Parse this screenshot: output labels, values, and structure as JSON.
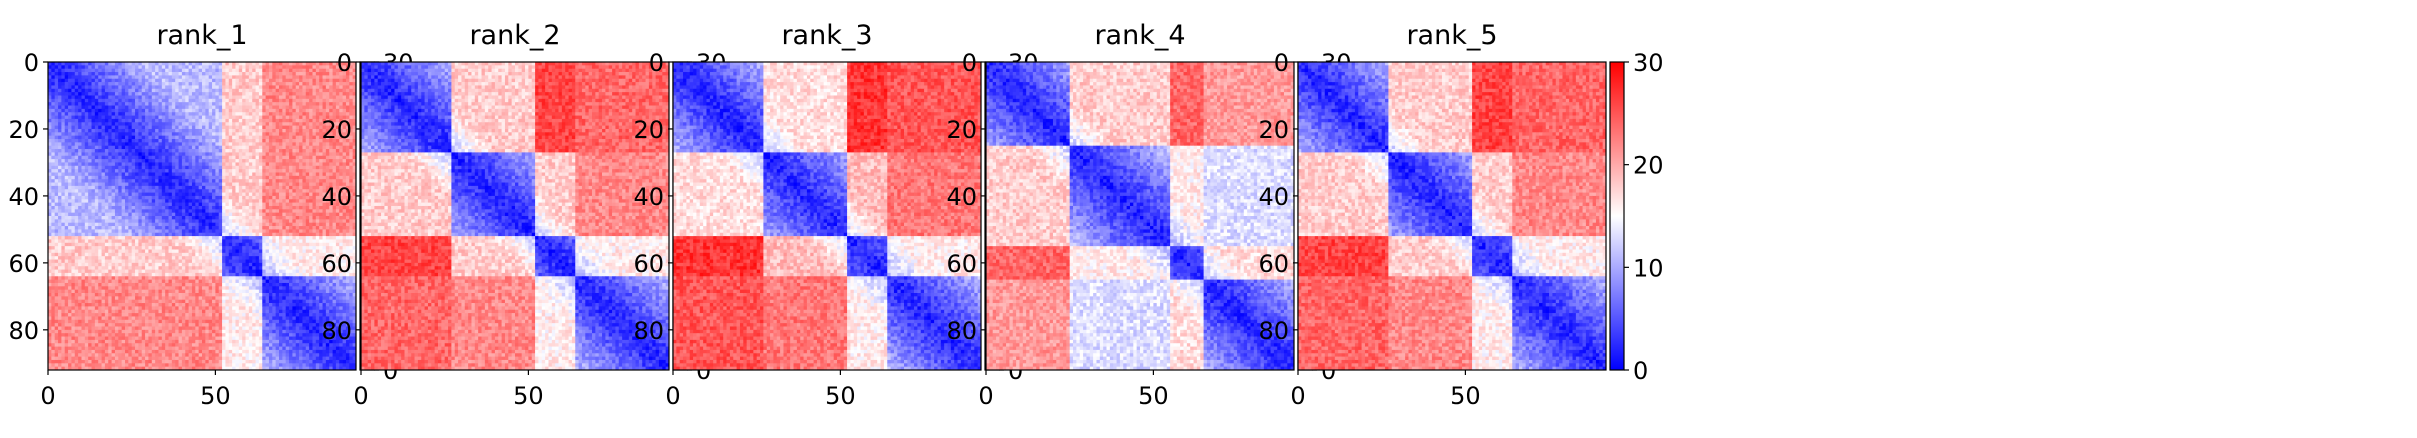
{
  "chart_data": [
    {
      "type": "heatmap",
      "title": "rank_1",
      "x_ticks": [
        0,
        50
      ],
      "y_ticks": [
        0,
        20,
        40,
        60,
        80
      ],
      "xlim": [
        0,
        92
      ],
      "ylim": [
        92,
        0
      ],
      "colorbar": {
        "min": 0,
        "max": 30,
        "ticks": [
          0,
          10,
          20,
          30
        ],
        "colors": [
          "#0000ff",
          "#ffffff",
          "#ff0000"
        ]
      },
      "domains": [
        [
          0,
          52
        ],
        [
          52,
          64
        ],
        [
          64,
          92
        ]
      ],
      "domain_contacts": [
        [
          0,
          18,
          22
        ],
        [
          18,
          0,
          16
        ],
        [
          22,
          16,
          0
        ]
      ]
    },
    {
      "type": "heatmap",
      "title": "rank_2",
      "x_ticks": [
        0,
        50
      ],
      "y_ticks": [
        0,
        20,
        40,
        60,
        80
      ],
      "xlim": [
        0,
        92
      ],
      "ylim": [
        92,
        0
      ],
      "colorbar": {
        "min": 0,
        "max": 30,
        "ticks": [
          0,
          10,
          20,
          30
        ],
        "colors": [
          "#0000ff",
          "#ffffff",
          "#ff0000"
        ]
      },
      "domains": [
        [
          0,
          27
        ],
        [
          27,
          52
        ],
        [
          52,
          64
        ],
        [
          64,
          92
        ]
      ],
      "domain_contacts": [
        [
          0,
          18,
          26,
          24
        ],
        [
          18,
          0,
          18,
          22
        ],
        [
          26,
          18,
          0,
          16
        ],
        [
          24,
          22,
          16,
          0
        ]
      ]
    },
    {
      "type": "heatmap",
      "title": "rank_3",
      "x_ticks": [
        0,
        50
      ],
      "y_ticks": [
        0,
        20,
        40,
        60,
        80
      ],
      "xlim": [
        0,
        92
      ],
      "ylim": [
        92,
        0
      ],
      "colorbar": {
        "min": 0,
        "max": 30,
        "ticks": [
          0,
          10,
          20,
          30
        ],
        "colors": [
          "#0000ff",
          "#ffffff",
          "#ff0000"
        ]
      },
      "domains": [
        [
          0,
          27
        ],
        [
          27,
          52
        ],
        [
          52,
          64
        ],
        [
          64,
          92
        ]
      ],
      "domain_contacts": [
        [
          0,
          17,
          27,
          25
        ],
        [
          17,
          0,
          19,
          23
        ],
        [
          27,
          19,
          0,
          16
        ],
        [
          25,
          23,
          16,
          0
        ]
      ]
    },
    {
      "type": "heatmap",
      "title": "rank_4",
      "x_ticks": [
        0,
        50
      ],
      "y_ticks": [
        0,
        20,
        40,
        60,
        80
      ],
      "xlim": [
        0,
        92
      ],
      "ylim": [
        92,
        0
      ],
      "colorbar": {
        "min": 0,
        "max": 30,
        "ticks": [
          0,
          10,
          20,
          30
        ],
        "colors": [
          "#0000ff",
          "#ffffff",
          "#ff0000"
        ]
      },
      "domains": [
        [
          0,
          25
        ],
        [
          25,
          55
        ],
        [
          55,
          65
        ],
        [
          65,
          92
        ]
      ],
      "domain_contacts": [
        [
          0,
          18,
          24,
          21
        ],
        [
          18,
          0,
          16,
          13
        ],
        [
          24,
          16,
          0,
          17
        ],
        [
          21,
          13,
          17,
          0
        ]
      ]
    },
    {
      "type": "heatmap",
      "title": "rank_5",
      "x_ticks": [
        0,
        50
      ],
      "y_ticks": [
        0,
        20,
        40,
        60,
        80
      ],
      "xlim": [
        0,
        92
      ],
      "ylim": [
        92,
        0
      ],
      "colorbar": {
        "min": 0,
        "max": 30,
        "ticks": [
          0,
          10,
          20,
          30
        ],
        "colors": [
          "#0000ff",
          "#ffffff",
          "#ff0000"
        ]
      },
      "domains": [
        [
          0,
          27
        ],
        [
          27,
          52
        ],
        [
          52,
          64
        ],
        [
          64,
          92
        ]
      ],
      "domain_contacts": [
        [
          0,
          18,
          26,
          24
        ],
        [
          18,
          0,
          18,
          22
        ],
        [
          26,
          18,
          0,
          16
        ],
        [
          24,
          22,
          16,
          0
        ]
      ]
    }
  ]
}
